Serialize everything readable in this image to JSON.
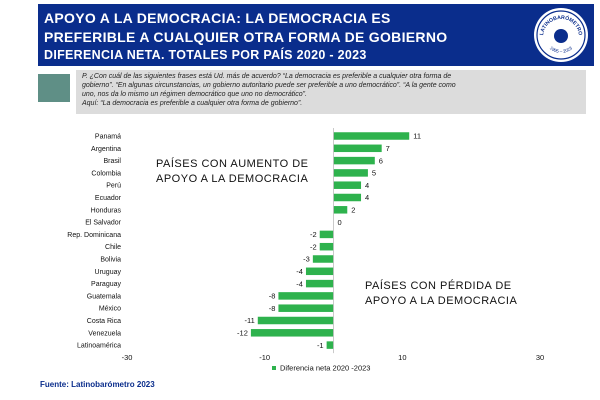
{
  "header": {
    "line1": "APOYO A LA DEMOCRACIA:  LA DEMOCRACIA ES",
    "line2": "PREFERIBLE A CUALQUIER OTRA FORMA DE GOBIERNO",
    "line3": "DIFERENCIA NETA. TOTALES POR PAÍS  2020 - 2023",
    "logo_text_top": "LATINOBARÓMETRO",
    "logo_years": "1995 – 2023"
  },
  "question": {
    "line1": "P. ¿Con cuál de las siguientes frases está Ud. más de acuerdo? “La democracia es preferible a cualquier otra forma de",
    "line2": "gobierno”. “En algunas circunstancias, un gobierno autoritario puede ser preferible a uno democrático”. “A la gente como",
    "line3": "uno, nos da lo mismo un régimen democrático que uno no democrático”.",
    "line4": "Aquí: “La democracia es preferible a cualquier otra forma de gobierno”."
  },
  "annotations": {
    "increase_line1": "PAÍSES CON AUMENTO DE",
    "increase_line2": "APOYO A LA DEMOCRACIA",
    "decrease_line1": "PAÍSES CON PÉRDIDA DE",
    "decrease_line2": "APOYO A LA DEMOCRACIA"
  },
  "source": "Fuente: Latinobarómetro 2023",
  "colors": {
    "header_bg": "#0a2d8c",
    "bar": "#2eb24d",
    "teal_box": "#5f8f86",
    "question_bg": "#dcdcdc"
  },
  "chart_data": {
    "type": "bar",
    "orientation": "horizontal",
    "categories": [
      "Panamá",
      "Argentina",
      "Brasil",
      "Colombia",
      "Perú",
      "Ecuador",
      "Honduras",
      "El Salvador",
      "Rep. Dominicana",
      "Chile",
      "Bolivia",
      "Uruguay",
      "Paraguay",
      "Guatemala",
      "México",
      "Costa Rica",
      "Venezuela",
      "Latinoamérica"
    ],
    "series": [
      {
        "name": "Diferencia neta 2020 -2023",
        "values": [
          11,
          7,
          6,
          5,
          4,
          4,
          2,
          0,
          -2,
          -2,
          -3,
          -4,
          -4,
          -8,
          -8,
          -11,
          -12,
          -1
        ]
      }
    ],
    "data_labels": [
      "11",
      "7",
      "6",
      "5",
      "4",
      "4",
      "2",
      "0",
      "-2",
      "-2",
      "-3",
      "-4",
      "-4",
      "-8",
      "-8",
      "-11",
      "-12",
      "-1"
    ],
    "xlim": [
      -30,
      30
    ],
    "xticks": [
      -30,
      -10,
      10,
      30
    ],
    "xtick_labels": [
      "-30",
      "-10",
      "10",
      "30"
    ],
    "legend_position": "bottom",
    "grid": false
  }
}
